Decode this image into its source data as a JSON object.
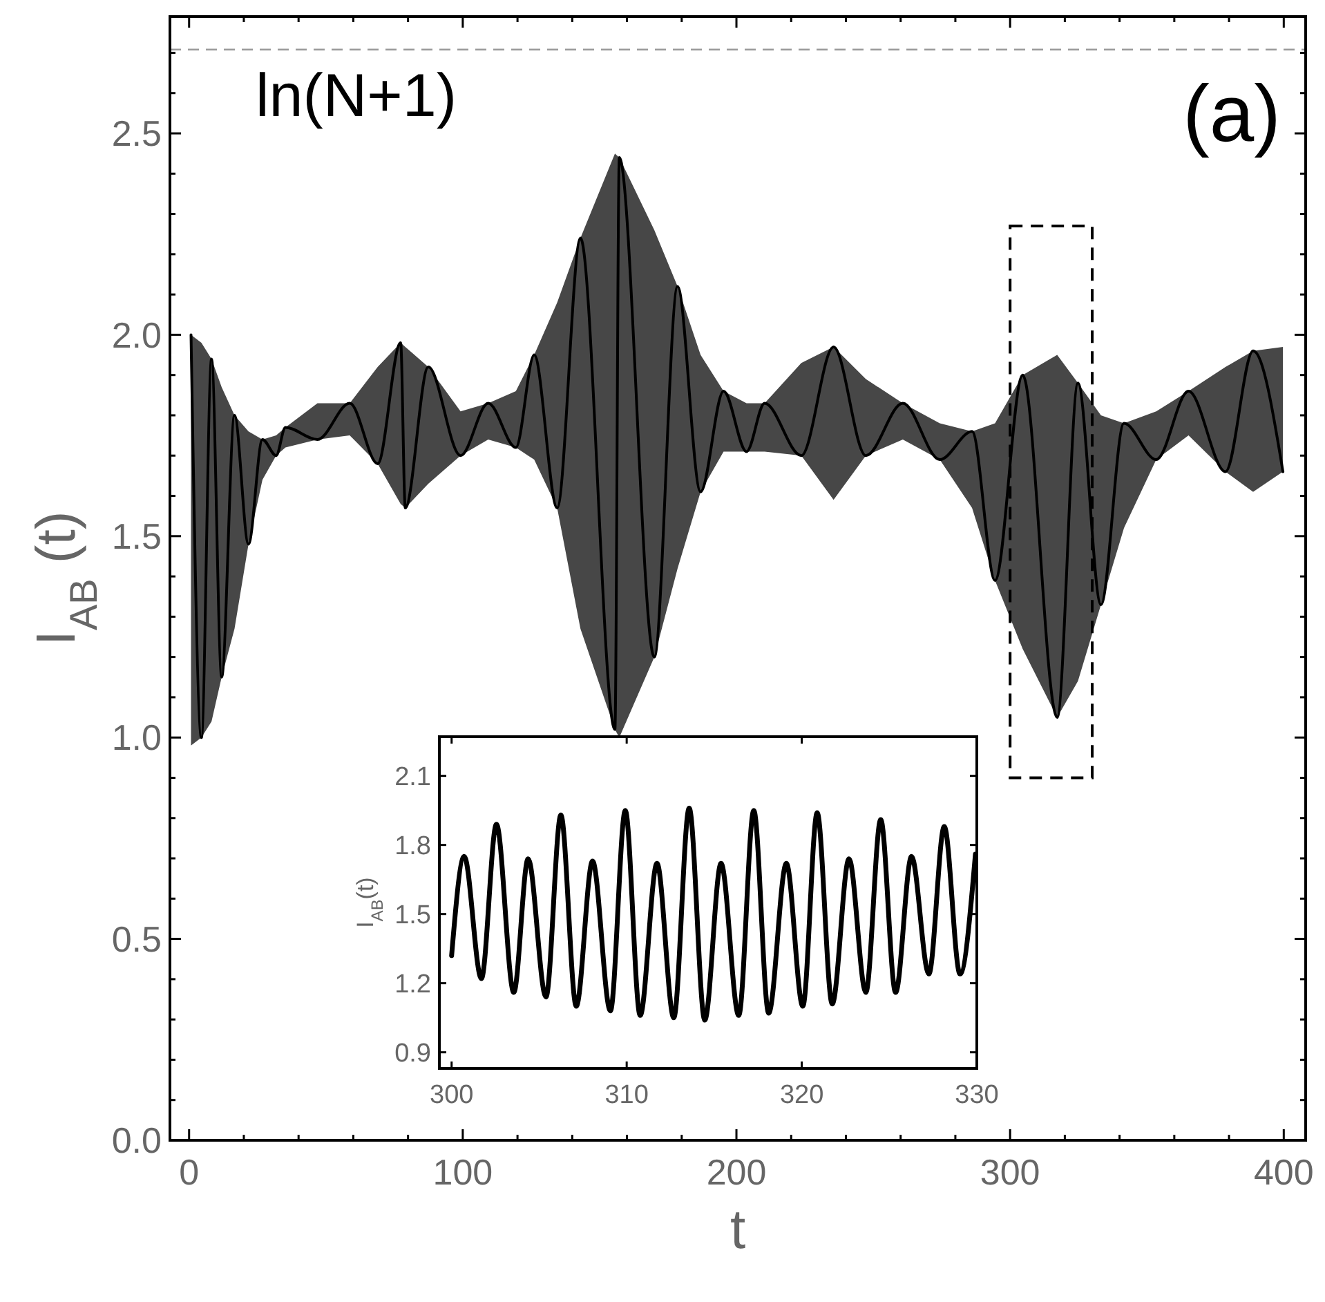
{
  "chart_data": [
    {
      "type": "line",
      "xlabel": "t",
      "ylabel": "I$_{AB}$ (t)",
      "xlim": [
        -7,
        408
      ],
      "ylim": [
        0,
        2.79
      ],
      "xticks": [
        0,
        {
          "value": 20,
          "label": null
        },
        {
          "value": 40,
          "label": null
        },
        {
          "value": 60,
          "label": null
        },
        {
          "value": 80,
          "label": null
        },
        100,
        {
          "value": 120,
          "label": null
        },
        {
          "value": 140,
          "label": null
        },
        {
          "value": 160,
          "label": null
        },
        {
          "value": 180,
          "label": null
        },
        200,
        {
          "value": 220,
          "label": null
        },
        {
          "value": 240,
          "label": null
        },
        {
          "value": 260,
          "label": null
        },
        {
          "value": 280,
          "label": null
        },
        300,
        {
          "value": 320,
          "label": null
        },
        {
          "value": 340,
          "label": null
        },
        {
          "value": 360,
          "label": null
        },
        {
          "value": 380,
          "label": null
        },
        400
      ],
      "yticks": [
        {
          "value": 0,
          "label": "0.0"
        },
        {
          "value": 0.1,
          "label": null
        },
        {
          "value": 0.2,
          "label": null
        },
        {
          "value": 0.3,
          "label": null
        },
        {
          "value": 0.4,
          "label": null
        },
        0.5,
        {
          "value": 0.6,
          "label": null
        },
        {
          "value": 0.7,
          "label": null
        },
        {
          "value": 0.8,
          "label": null
        },
        {
          "value": 0.9,
          "label": null
        },
        {
          "value": 1,
          "label": "1.0"
        },
        {
          "value": 1.1,
          "label": null
        },
        {
          "value": 1.2,
          "label": null
        },
        {
          "value": 1.3,
          "label": null
        },
        {
          "value": 1.4,
          "label": null
        },
        1.5,
        {
          "value": 1.6,
          "label": null
        },
        {
          "value": 1.7,
          "label": null
        },
        {
          "value": 1.8,
          "label": null
        },
        {
          "value": 1.9,
          "label": null
        },
        {
          "value": 2,
          "label": "2.0"
        },
        {
          "value": 2.1,
          "label": null
        },
        {
          "value": 2.2,
          "label": null
        },
        {
          "value": 2.3,
          "label": null
        },
        {
          "value": 2.4,
          "label": null
        },
        2.5,
        {
          "value": 2.6,
          "label": null
        },
        {
          "value": 2.7,
          "label": null
        }
      ],
      "grid": false,
      "marker": "none",
      "line_style": "solid",
      "series": [
        {
          "color": "#000000",
          "x": [
            0.7,
            4.5,
            8.2,
            11.9,
            16.6,
            21.7,
            26.8,
            31.8,
            35.2,
            46.9,
            58.7,
            68.9,
            77.3,
            79.0,
            87.4,
            99.2,
            109.3,
            119.4,
            126.1,
            134.5,
            143.0,
            155.6,
            157.2,
            170.0,
            178.5,
            186.9,
            195.3,
            203.7,
            210.3,
            223.7,
            235.5,
            247.3,
            260.8,
            274.3,
            286.1,
            294.5,
            304.6,
            317.2,
            324.8,
            333.2,
            341.6,
            353.4,
            365.2,
            378.7,
            388.8,
            399.7
          ],
          "values": [
            2.0,
            1.0,
            1.94,
            1.15,
            1.8,
            1.48,
            1.74,
            1.7,
            1.77,
            1.74,
            1.83,
            1.68,
            1.98,
            1.57,
            1.92,
            1.7,
            1.83,
            1.72,
            1.95,
            1.57,
            2.24,
            1.02,
            2.44,
            1.2,
            2.12,
            1.61,
            1.86,
            1.71,
            1.83,
            1.7,
            1.97,
            1.7,
            1.83,
            1.69,
            1.76,
            1.39,
            1.9,
            1.05,
            1.88,
            1.33,
            1.78,
            1.69,
            1.86,
            1.66,
            1.96,
            1.66
          ],
          "upper": [
            2.0,
            1.98,
            1.94,
            1.87,
            1.8,
            1.76,
            1.74,
            1.75,
            1.77,
            1.83,
            1.83,
            1.92,
            1.98,
            1.97,
            1.92,
            1.81,
            1.83,
            1.86,
            1.95,
            2.08,
            2.24,
            2.45,
            2.44,
            2.26,
            2.12,
            1.95,
            1.86,
            1.83,
            1.83,
            1.93,
            1.97,
            1.89,
            1.83,
            1.78,
            1.76,
            1.78,
            1.9,
            1.95,
            1.88,
            1.8,
            1.78,
            1.81,
            1.86,
            1.92,
            1.96,
            1.97
          ],
          "lower": [
            0.98,
            1.0,
            1.04,
            1.15,
            1.27,
            1.48,
            1.64,
            1.7,
            1.72,
            1.74,
            1.75,
            1.68,
            1.58,
            1.57,
            1.63,
            1.7,
            1.74,
            1.72,
            1.69,
            1.57,
            1.27,
            1.02,
            1.0,
            1.2,
            1.42,
            1.61,
            1.71,
            1.71,
            1.71,
            1.7,
            1.59,
            1.7,
            1.74,
            1.69,
            1.57,
            1.39,
            1.22,
            1.05,
            1.14,
            1.33,
            1.52,
            1.69,
            1.75,
            1.66,
            1.61,
            1.66
          ]
        }
      ],
      "ref_lines": [
        {
          "axis": "y",
          "value": 2.708,
          "label": "ln(N+1)",
          "color": "#999999",
          "line_style": "dashed"
        }
      ],
      "annotations": [
        "(a)"
      ]
    },
    {
      "type": "line",
      "ylabel": "I$_{AB}$(t)",
      "xlim": [
        299.3,
        330
      ],
      "ylim": [
        0.83,
        2.27
      ],
      "xticks": [
        300,
        310,
        320,
        330
      ],
      "yticks": [
        0.9,
        1.2,
        1.5,
        1.8,
        2.1
      ],
      "grid": false,
      "marker": "none",
      "line_style": "solid",
      "series": [
        {
          "color": "#000000",
          "x": [
            300,
            300.72,
            301.7,
            302.56,
            303.55,
            304.37,
            305.39,
            306.24,
            307.12,
            308.05,
            309.07,
            309.92,
            310.77,
            311.73,
            312.69,
            313.57,
            314.46,
            315.39,
            316.4,
            317.26,
            318.11,
            319.12,
            320.06,
            320.88,
            321.74,
            322.7,
            323.66,
            324.51,
            325.36,
            326.27,
            327.26,
            328.14,
            329.04,
            329.92
          ],
          "values": [
            1.32,
            1.75,
            1.22,
            1.89,
            1.16,
            1.74,
            1.14,
            1.93,
            1.1,
            1.73,
            1.08,
            1.95,
            1.06,
            1.72,
            1.05,
            1.96,
            1.04,
            1.72,
            1.06,
            1.95,
            1.07,
            1.72,
            1.1,
            1.94,
            1.11,
            1.74,
            1.16,
            1.91,
            1.16,
            1.75,
            1.24,
            1.88,
            1.24,
            1.76
          ]
        }
      ]
    }
  ]
}
